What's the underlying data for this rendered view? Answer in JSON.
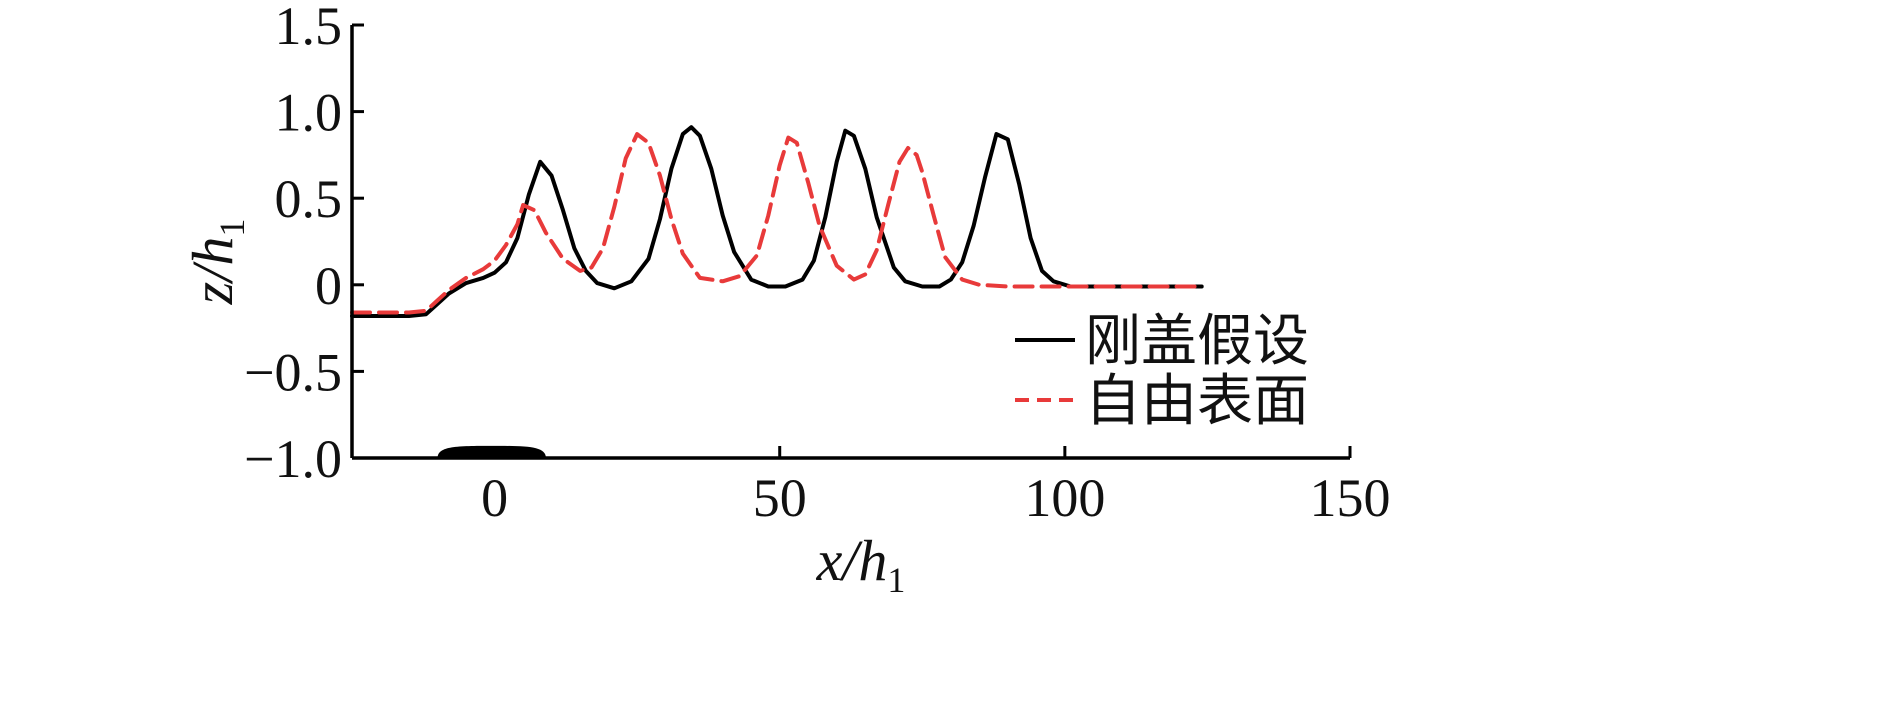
{
  "chart_data": {
    "type": "line",
    "xlabel": {
      "main": "x/h",
      "sub": "1"
    },
    "ylabel": {
      "main": "z/h",
      "sub": "1"
    },
    "xlim": [
      -25,
      150
    ],
    "ylim": [
      -1.0,
      1.5
    ],
    "xticks": [
      0,
      50,
      100,
      150
    ],
    "yticks": [
      -1.0,
      -0.5,
      0,
      0.5,
      1.0,
      1.5
    ],
    "xtick_labels": [
      "0",
      "50",
      "100",
      "150"
    ],
    "ytick_labels": [
      "−1.0",
      "−0.5",
      "0",
      "0.5",
      "1.0",
      "1.5"
    ],
    "grid": false,
    "legend_position": "lower-right",
    "series": [
      {
        "name": "刚盖假设",
        "color": "#000000",
        "dash": "solid",
        "x": [
          -25,
          -15,
          -12,
          -10,
          -8,
          -5,
          -2,
          0,
          2,
          4,
          6,
          8,
          10,
          12,
          14,
          16,
          18,
          21,
          24,
          27,
          29,
          31,
          33,
          34.5,
          36,
          38,
          40,
          42,
          45,
          48,
          51,
          54,
          56,
          58,
          60,
          61.5,
          63,
          65,
          67,
          70,
          72,
          75,
          78,
          80,
          82,
          84,
          86,
          88,
          90,
          92,
          94,
          96,
          98,
          101,
          110,
          120,
          124
        ],
        "y": [
          -0.18,
          -0.18,
          -0.17,
          -0.11,
          -0.05,
          0.01,
          0.04,
          0.07,
          0.13,
          0.27,
          0.52,
          0.71,
          0.63,
          0.43,
          0.21,
          0.08,
          0.01,
          -0.02,
          0.02,
          0.15,
          0.38,
          0.67,
          0.87,
          0.91,
          0.86,
          0.67,
          0.4,
          0.19,
          0.03,
          -0.01,
          -0.01,
          0.03,
          0.14,
          0.39,
          0.71,
          0.89,
          0.86,
          0.67,
          0.39,
          0.1,
          0.02,
          -0.01,
          -0.01,
          0.03,
          0.13,
          0.34,
          0.62,
          0.87,
          0.84,
          0.58,
          0.27,
          0.08,
          0.02,
          -0.01,
          -0.01,
          -0.01,
          -0.01
        ]
      },
      {
        "name": "自由表面",
        "color": "#e83a3a",
        "dash": "dashed",
        "x": [
          -25,
          -15,
          -12,
          -10,
          -8,
          -5,
          -2,
          0,
          2,
          4,
          5,
          7,
          9,
          12,
          15,
          17,
          19,
          21,
          23,
          25,
          27,
          29,
          31,
          33,
          36,
          40,
          43,
          46,
          48,
          50,
          51.5,
          53,
          55,
          57,
          60,
          63,
          65,
          67,
          69,
          71,
          72.5,
          74,
          75,
          77,
          79,
          82,
          85,
          90,
          100,
          110,
          124
        ],
        "y": [
          -0.16,
          -0.16,
          -0.15,
          -0.09,
          -0.03,
          0.04,
          0.09,
          0.14,
          0.23,
          0.35,
          0.46,
          0.43,
          0.3,
          0.15,
          0.08,
          0.1,
          0.21,
          0.45,
          0.73,
          0.87,
          0.82,
          0.63,
          0.38,
          0.18,
          0.04,
          0.02,
          0.05,
          0.17,
          0.4,
          0.69,
          0.85,
          0.82,
          0.59,
          0.34,
          0.11,
          0.03,
          0.06,
          0.2,
          0.46,
          0.71,
          0.79,
          0.75,
          0.65,
          0.4,
          0.16,
          0.03,
          0.0,
          -0.01,
          -0.01,
          -0.01,
          -0.01
        ]
      }
    ],
    "bottom_shape": {
      "x_range": [
        -10,
        9
      ],
      "y_base": -1.0,
      "height": 0.07,
      "color": "#000000"
    }
  }
}
